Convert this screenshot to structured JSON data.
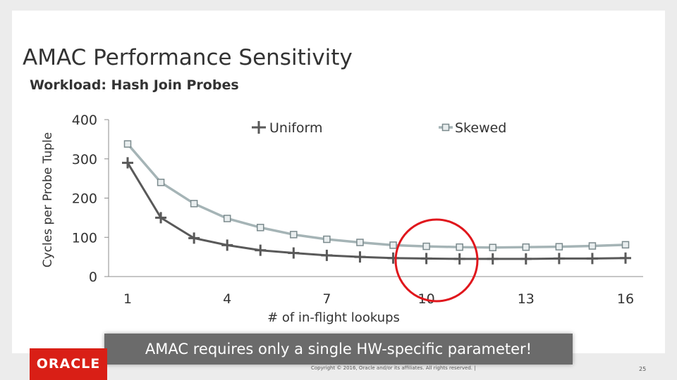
{
  "slide": {
    "title": "AMAC Performance Sensitivity",
    "subtitle": "Workload: Hash Join Probes",
    "banner": "AMAC requires only a single HW-specific parameter!",
    "logo": "ORACLE",
    "copyright": "Copyright © 2016, Oracle and/or its affiliates. All rights reserved. |",
    "page_number": "25"
  },
  "colors": {
    "uniform": "#595959",
    "skewed": "#a5b4b6",
    "skewed_marker": "#7b8a8d",
    "highlight": "#e0161c",
    "banner": "#6b6b6b",
    "logo": "#d91f16"
  },
  "chart_data": {
    "type": "line",
    "xlabel": "# of in-flight lookups",
    "ylabel": "Cycles per Probe Tuple",
    "x": [
      1,
      2,
      3,
      4,
      5,
      6,
      7,
      8,
      9,
      10,
      11,
      12,
      13,
      14,
      15,
      16
    ],
    "xticks": [
      "1",
      "4",
      "7",
      "10",
      "13",
      "16"
    ],
    "yticks": [
      "0",
      "100",
      "200",
      "300",
      "400"
    ],
    "ylim": [
      0,
      400
    ],
    "xlim": [
      1,
      16
    ],
    "grid": false,
    "legend": "top",
    "series": [
      {
        "name": "Uniform",
        "marker": "plus",
        "values": [
          290,
          150,
          98,
          80,
          67,
          60,
          54,
          50,
          47,
          46,
          45,
          45,
          45,
          46,
          46,
          47
        ]
      },
      {
        "name": "Skewed",
        "marker": "square",
        "values": [
          338,
          240,
          186,
          148,
          125,
          107,
          95,
          87,
          80,
          77,
          75,
          74,
          75,
          76,
          78,
          81
        ]
      }
    ],
    "annotations": [
      {
        "shape": "ellipse",
        "note": "highlights the curve flattening",
        "x_center": 10.5
      }
    ]
  }
}
